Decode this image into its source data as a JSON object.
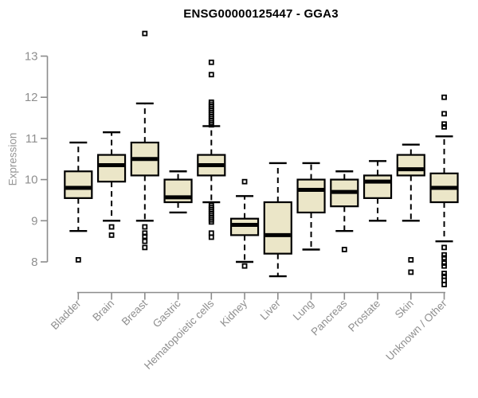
{
  "style": {
    "box_fill": "#EBE6C8",
    "box_stroke": "#000000",
    "median_color": "#000000",
    "whisker_color": "#000000",
    "outlier_color": "#000000",
    "axis_color": "#8c8c8c",
    "tick_label_color": "#8f8f8f",
    "title_color": "#000000"
  },
  "chart_data": {
    "type": "boxplot",
    "title": "ENSG00000125447 - GGA3",
    "ylabel": "Expression",
    "xlabel": "",
    "yticks": [
      8,
      9,
      10,
      11,
      12,
      13
    ],
    "ylim": [
      7.25,
      13.75
    ],
    "grid": false,
    "x_label_rotation": 45,
    "categories": [
      "Bladder",
      "Brain",
      "Breast",
      "Gastric",
      "Hematopoietic cells",
      "Kidney",
      "Liver",
      "Lung",
      "Pancreas",
      "Prostate",
      "Skin",
      "Unknown / Other"
    ],
    "series": [
      {
        "category": "Bladder",
        "whisker_low": 8.75,
        "q1": 9.55,
        "median": 9.8,
        "q3": 10.2,
        "whisker_high": 10.9,
        "outliers": [
          8.05
        ]
      },
      {
        "category": "Brain",
        "whisker_low": 9.0,
        "q1": 9.95,
        "median": 10.35,
        "q3": 10.6,
        "whisker_high": 11.15,
        "outliers": [
          8.85,
          8.65
        ]
      },
      {
        "category": "Breast",
        "whisker_low": 9.0,
        "q1": 10.1,
        "median": 10.5,
        "q3": 10.9,
        "whisker_high": 11.85,
        "outliers": [
          13.55,
          8.85,
          8.7,
          8.62,
          8.5,
          8.35
        ]
      },
      {
        "category": "Gastric",
        "whisker_low": 9.2,
        "q1": 9.45,
        "median": 9.57,
        "q3": 10.0,
        "whisker_high": 10.2,
        "outliers": []
      },
      {
        "category": "Hematopoietic cells",
        "whisker_low": 9.45,
        "q1": 10.1,
        "median": 10.35,
        "q3": 10.6,
        "whisker_high": 11.3,
        "outliers": [
          12.85,
          12.55,
          11.88,
          11.83,
          11.78,
          11.73,
          11.68,
          11.63,
          11.58,
          11.53,
          11.48,
          11.43,
          11.38,
          11.33,
          9.37,
          9.32,
          9.27,
          9.22,
          9.17,
          9.12,
          9.07,
          9.02,
          8.97,
          8.7,
          8.6
        ]
      },
      {
        "category": "Kidney",
        "whisker_low": 8.0,
        "q1": 8.65,
        "median": 8.9,
        "q3": 9.05,
        "whisker_high": 9.6,
        "outliers": [
          9.95,
          7.9
        ]
      },
      {
        "category": "Liver",
        "whisker_low": 7.65,
        "q1": 8.2,
        "median": 8.65,
        "q3": 9.45,
        "whisker_high": 10.4,
        "outliers": []
      },
      {
        "category": "Lung",
        "whisker_low": 8.3,
        "q1": 9.2,
        "median": 9.75,
        "q3": 10.0,
        "whisker_high": 10.4,
        "outliers": []
      },
      {
        "category": "Pancreas",
        "whisker_low": 8.75,
        "q1": 9.35,
        "median": 9.7,
        "q3": 10.0,
        "whisker_high": 10.2,
        "outliers": [
          8.3
        ]
      },
      {
        "category": "Prostate",
        "whisker_low": 9.0,
        "q1": 9.55,
        "median": 9.95,
        "q3": 10.1,
        "whisker_high": 10.45,
        "outliers": []
      },
      {
        "category": "Skin",
        "whisker_low": 9.0,
        "q1": 10.1,
        "median": 10.25,
        "q3": 10.6,
        "whisker_high": 10.85,
        "outliers": [
          8.05,
          7.75
        ]
      },
      {
        "category": "Unknown / Other",
        "whisker_low": 8.5,
        "q1": 9.45,
        "median": 9.8,
        "q3": 10.15,
        "whisker_high": 11.05,
        "outliers": [
          12.0,
          11.6,
          11.35,
          11.28,
          8.35,
          8.17,
          8.1,
          7.97,
          7.9,
          7.72,
          7.65,
          7.55,
          7.45
        ]
      }
    ]
  }
}
